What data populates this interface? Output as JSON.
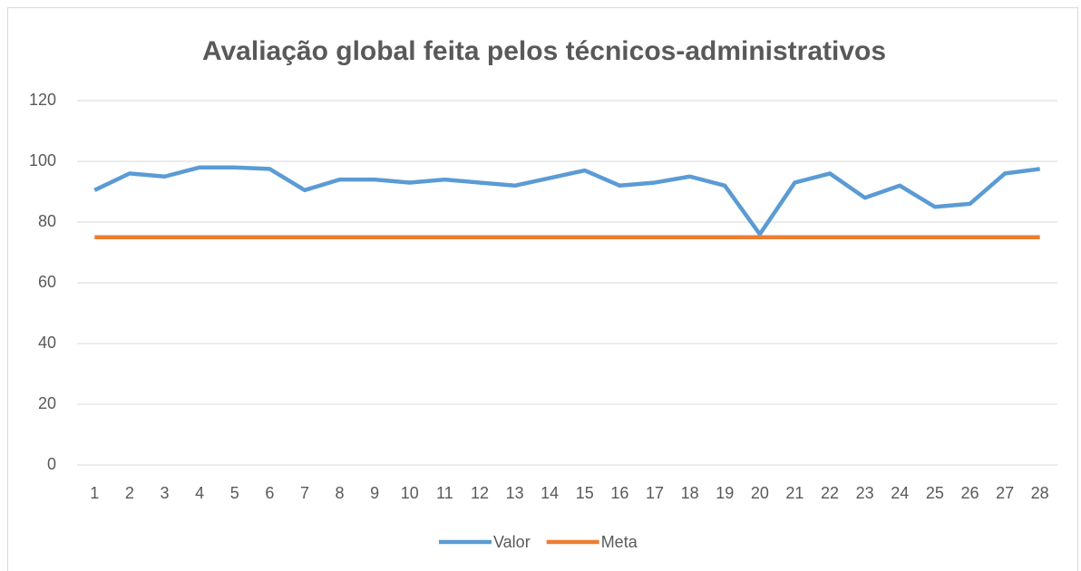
{
  "chart_data": {
    "type": "line",
    "title": "Avaliação global feita pelos técnicos-administrativos",
    "categories": [
      "1",
      "2",
      "3",
      "4",
      "5",
      "6",
      "7",
      "8",
      "9",
      "10",
      "11",
      "12",
      "13",
      "14",
      "15",
      "16",
      "17",
      "18",
      "19",
      "20",
      "21",
      "22",
      "23",
      "24",
      "25",
      "26",
      "27",
      "28"
    ],
    "series": [
      {
        "name": "Valor",
        "color": "#5b9bd5",
        "values": [
          90.5,
          96,
          95,
          98,
          98,
          97.5,
          90.5,
          94,
          94,
          93,
          94,
          93,
          92,
          94.5,
          97,
          92,
          93,
          95,
          92,
          76,
          93,
          96,
          88,
          92,
          85,
          86,
          96,
          97.5
        ]
      },
      {
        "name": "Meta",
        "color": "#ed7d31",
        "values": [
          75,
          75,
          75,
          75,
          75,
          75,
          75,
          75,
          75,
          75,
          75,
          75,
          75,
          75,
          75,
          75,
          75,
          75,
          75,
          75,
          75,
          75,
          75,
          75,
          75,
          75,
          75,
          75
        ]
      }
    ],
    "ylim": [
      0,
      120
    ],
    "yticks": [
      0,
      20,
      40,
      60,
      80,
      100,
      120
    ],
    "grid": true,
    "legend": "bottom"
  }
}
